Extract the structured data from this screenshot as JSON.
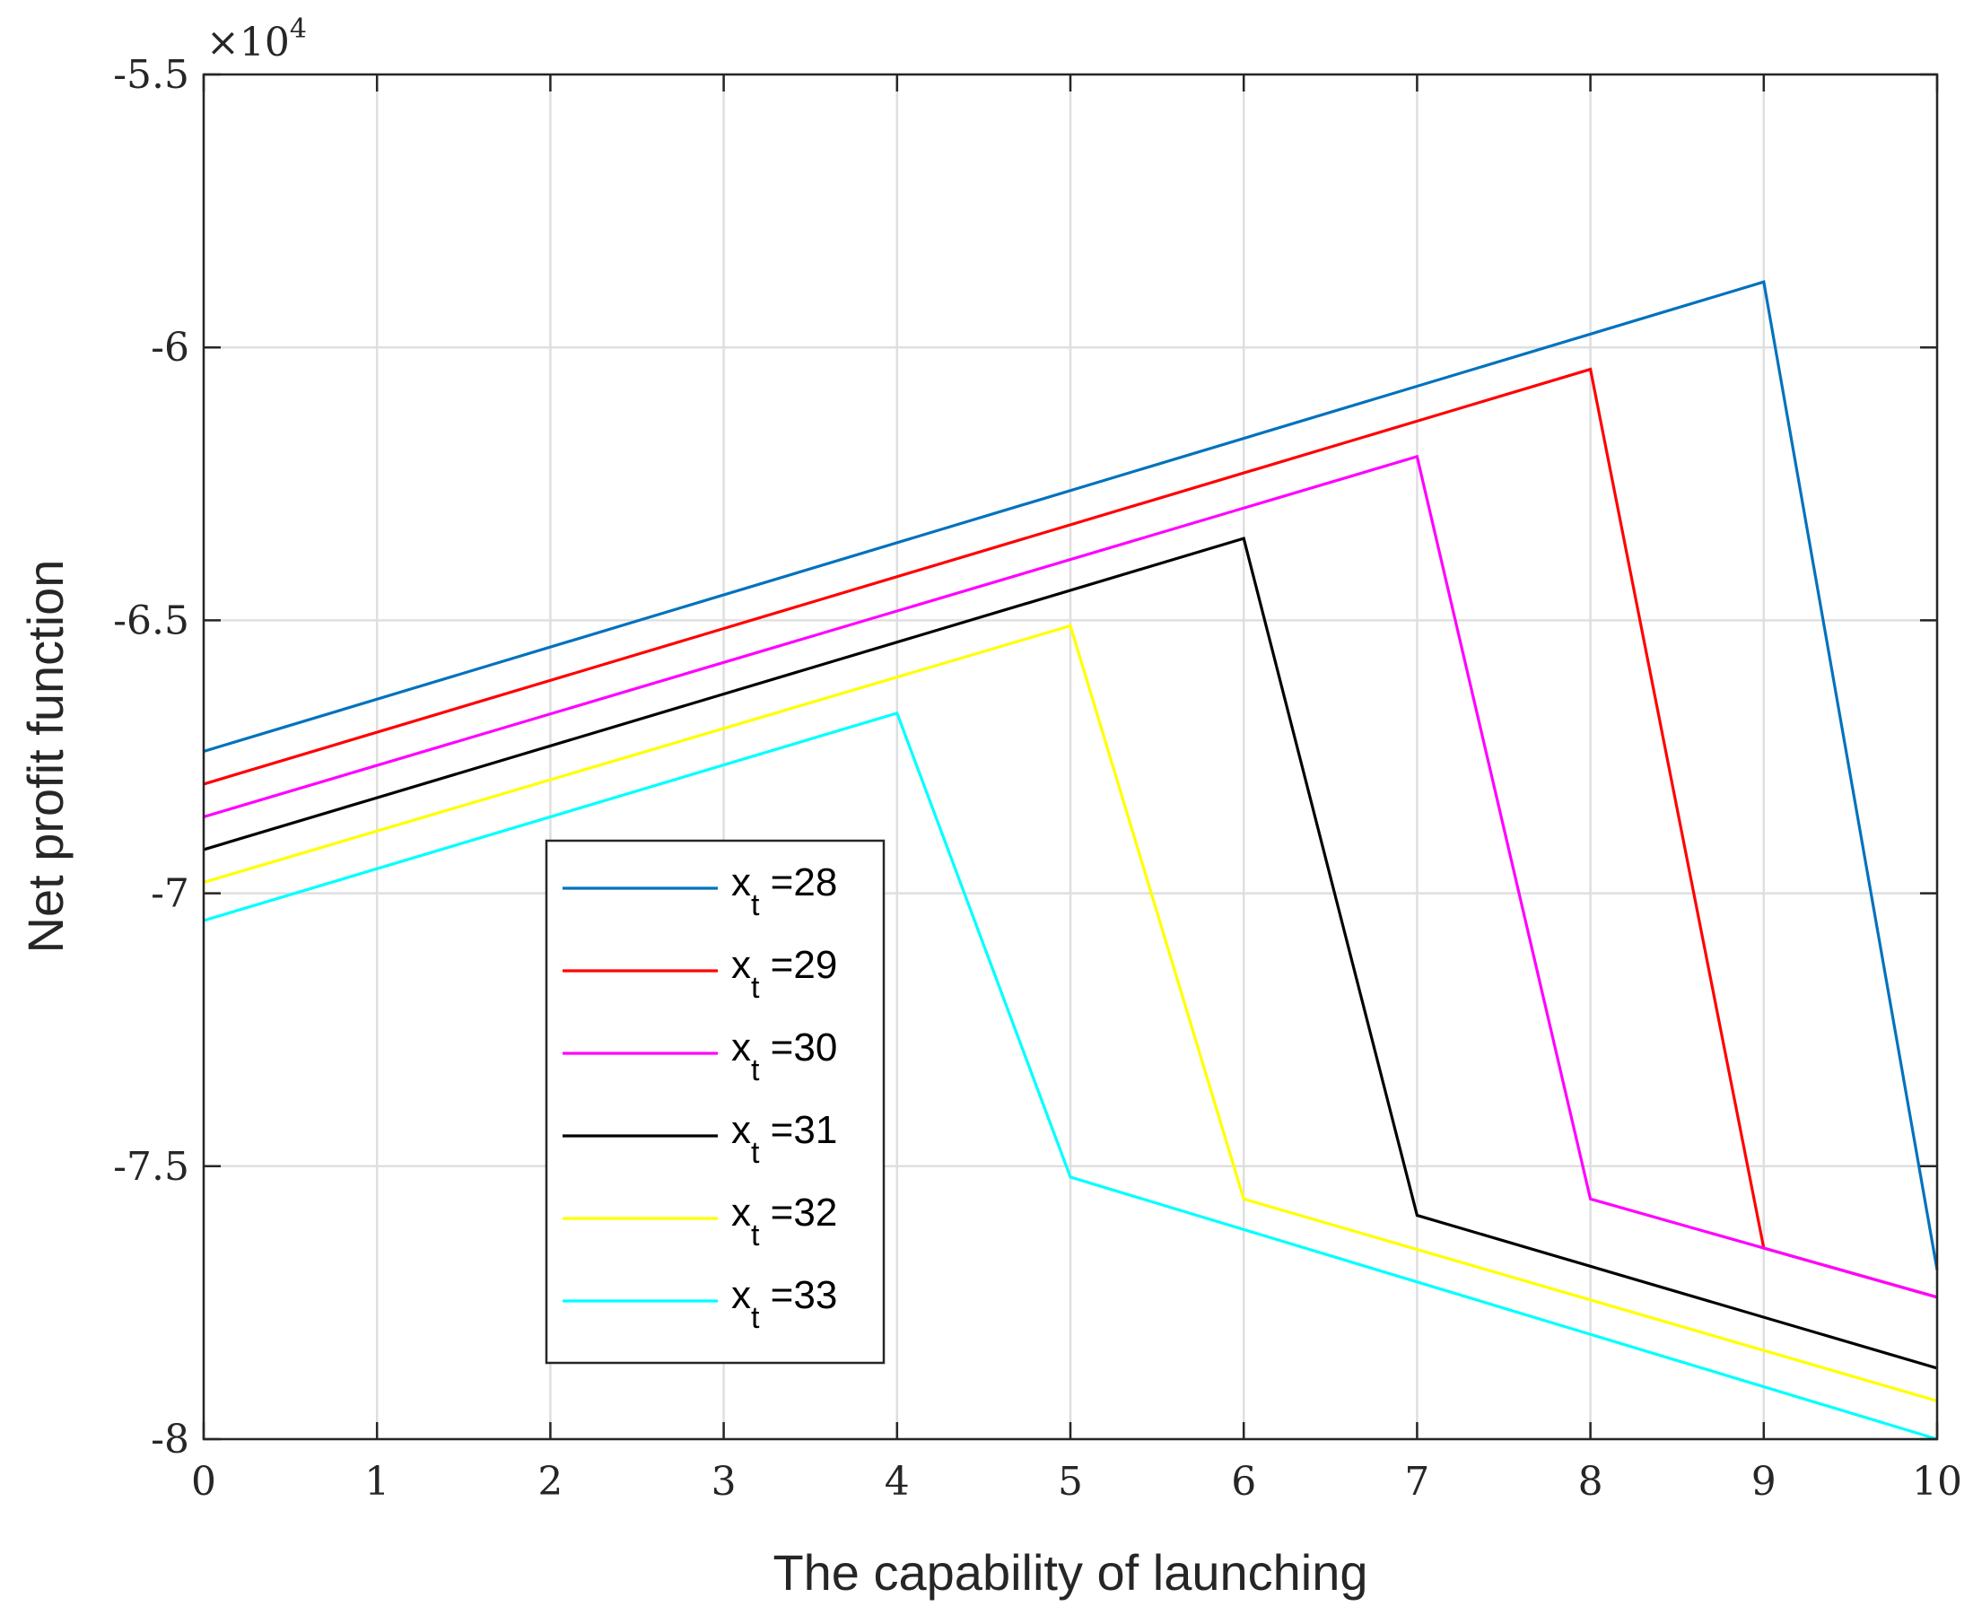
{
  "chart_data": {
    "type": "line",
    "xlabel": "The capability of launching",
    "ylabel": "Net profit function",
    "y_exponent_label": "×10",
    "y_exponent_power": "4",
    "xlim": [
      0,
      10
    ],
    "ylim": [
      -8,
      -5.5
    ],
    "xticks": [
      0,
      1,
      2,
      3,
      4,
      5,
      6,
      7,
      8,
      9,
      10
    ],
    "yticks": [
      -8,
      -7.5,
      -7,
      -6.5,
      -6,
      -5.5
    ],
    "xtick_labels": [
      "0",
      "1",
      "2",
      "3",
      "4",
      "5",
      "6",
      "7",
      "8",
      "9",
      "10"
    ],
    "ytick_labels": [
      "-8",
      "-7.5",
      "-7",
      "-6.5",
      "-6",
      "-5.5"
    ],
    "grid": true,
    "legend_position": "lower-left-center",
    "series": [
      {
        "name_main": "x",
        "name_sub": "t",
        "name_value": " =28",
        "color": "#0072BD",
        "x": [
          0,
          9,
          10
        ],
        "y": [
          -6.74,
          -5.88,
          -7.69
        ]
      },
      {
        "name_main": "x",
        "name_sub": "t",
        "name_value": " =29",
        "color": "#FF0000",
        "x": [
          0,
          8,
          9,
          10
        ],
        "y": [
          -6.8,
          -6.04,
          -7.65,
          -7.74
        ]
      },
      {
        "name_main": "x",
        "name_sub": "t",
        "name_value": " =30",
        "color": "#FF00FF",
        "x": [
          0,
          7,
          8,
          10
        ],
        "y": [
          -6.86,
          -6.2,
          -7.56,
          -7.74
        ]
      },
      {
        "name_main": "x",
        "name_sub": "t",
        "name_value": " =31",
        "color": "#000000",
        "x": [
          0,
          6,
          7,
          10
        ],
        "y": [
          -6.92,
          -6.35,
          -7.59,
          -7.87
        ]
      },
      {
        "name_main": "x",
        "name_sub": "t",
        "name_value": " =32",
        "color": "#FFFF00",
        "x": [
          0,
          5,
          6,
          10
        ],
        "y": [
          -6.98,
          -6.51,
          -7.56,
          -7.93
        ]
      },
      {
        "name_main": "x",
        "name_sub": "t",
        "name_value": " =33",
        "color": "#00FFFF",
        "x": [
          0,
          4,
          5,
          10
        ],
        "y": [
          -7.05,
          -6.67,
          -7.52,
          -8.0
        ]
      }
    ]
  }
}
